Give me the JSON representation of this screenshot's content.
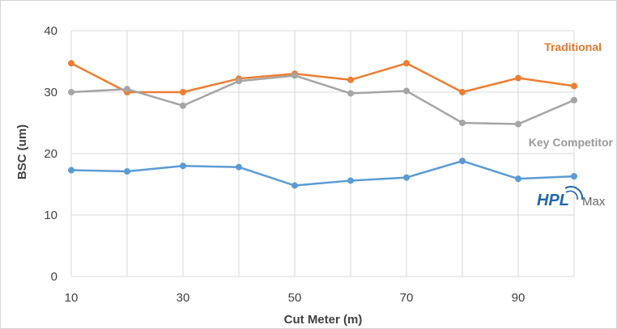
{
  "chart_data": {
    "type": "line",
    "title": "",
    "xlabel": "Cut Meter (m)",
    "ylabel": "BSC (um)",
    "xlim": [
      10,
      100
    ],
    "ylim": [
      0,
      40
    ],
    "x_ticks": [
      10,
      30,
      50,
      70,
      90
    ],
    "y_ticks": [
      0,
      10,
      20,
      30,
      40
    ],
    "grid": true,
    "legend": "none",
    "x": [
      10,
      20,
      30,
      40,
      50,
      60,
      70,
      80,
      90,
      100
    ],
    "series": [
      {
        "name": "Traditional",
        "color": "#ED7D31",
        "values": [
          34.7,
          30.0,
          30.0,
          32.2,
          33.0,
          32.0,
          34.7,
          30.0,
          32.3,
          31.0
        ]
      },
      {
        "name": "Key Competitor",
        "color": "#A5A5A5",
        "values": [
          30.0,
          30.5,
          27.8,
          31.8,
          32.7,
          29.8,
          30.2,
          25.0,
          24.8,
          28.7
        ]
      },
      {
        "name": "",
        "color": "#5B9BD5",
        "values": [
          17.3,
          17.1,
          18.0,
          17.8,
          14.8,
          15.6,
          16.1,
          18.8,
          15.9,
          16.3
        ]
      }
    ],
    "series_label_colors": {
      "traditional": "#E0782E",
      "competitor": "#999999"
    }
  },
  "logo": {
    "brand": "HPL",
    "suffix": "Max",
    "brand_color": "#1F67B0",
    "icon": "hpl-max-logo"
  }
}
